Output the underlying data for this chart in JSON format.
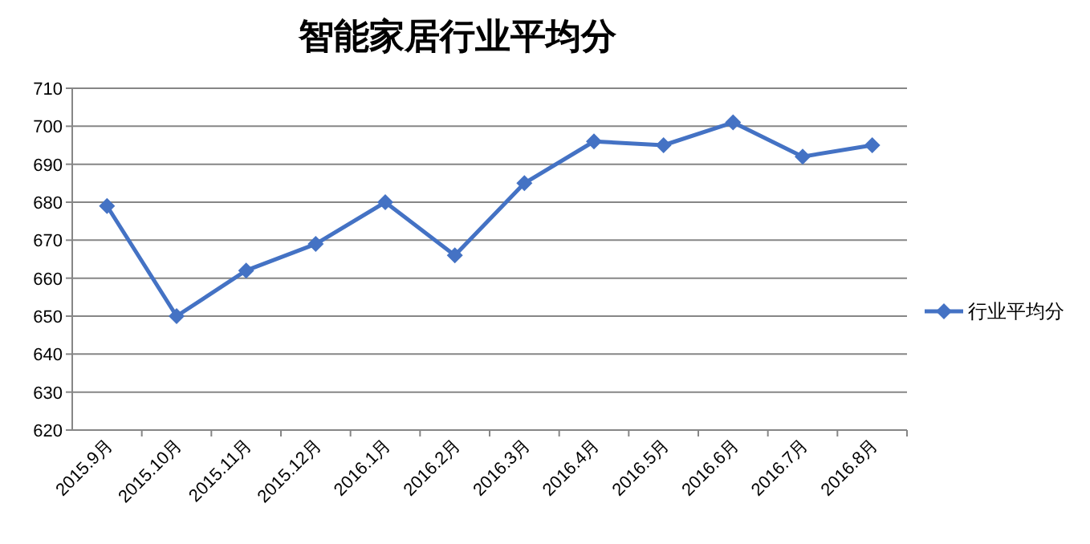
{
  "chart_data": {
    "type": "line",
    "title": "智能家居行业平均分",
    "categories": [
      "2015.9月",
      "2015.10月",
      "2015.11月",
      "2015.12月",
      "2016.1月",
      "2016.2月",
      "2016.3月",
      "2016.4月",
      "2016.5月",
      "2016.6月",
      "2016.7月",
      "2016.8月"
    ],
    "series": [
      {
        "name": "行业平均分",
        "color": "#4472c4",
        "values": [
          679,
          650,
          662,
          669,
          680,
          666,
          685,
          696,
          695,
          701,
          692,
          695
        ]
      }
    ],
    "ylim": [
      620,
      710
    ],
    "yticks": [
      620,
      630,
      640,
      650,
      660,
      670,
      680,
      690,
      700,
      710
    ],
    "grid": "y",
    "legend": "right",
    "marker": "diamond",
    "line_style": "solid"
  }
}
